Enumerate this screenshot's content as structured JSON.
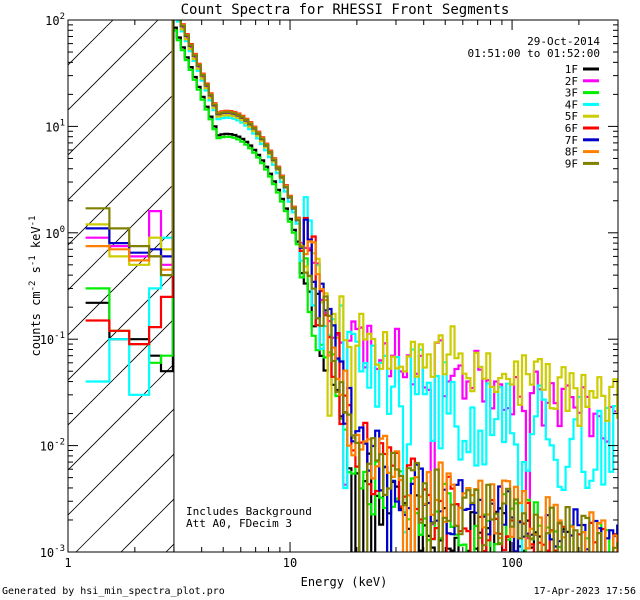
{
  "chart_data": {
    "type": "line",
    "title": "Count Spectra for RHESSI Front Segments",
    "xlabel": "Energy (keV)",
    "ylabel_parts": [
      "counts cm",
      "-2",
      " s",
      "-1",
      " keV",
      "-1"
    ],
    "xscale": "log",
    "yscale": "log",
    "xlim": [
      1,
      300
    ],
    "ylim": [
      0.001,
      100
    ],
    "x_ticks": [
      {
        "value": 1,
        "label": "1"
      },
      {
        "value": 10,
        "label": "10"
      },
      {
        "value": 100,
        "label": "100"
      }
    ],
    "y_ticks": [
      {
        "value": 100,
        "base": "10",
        "exp": "2"
      },
      {
        "value": 10,
        "base": "10",
        "exp": "1"
      },
      {
        "value": 1,
        "base": "10",
        "exp": "0"
      },
      {
        "value": 0.1,
        "base": "10",
        "exp": "-1"
      },
      {
        "value": 0.01,
        "base": "10",
        "exp": "-2"
      },
      {
        "value": 0.001,
        "base": "10",
        "exp": "-3"
      }
    ],
    "hatched_region_xmax": 3,
    "date": "29-Oct-2014",
    "time_range": "01:51:00 to 01:52:00",
    "annotations": [
      "Includes Background",
      "Att A0, FDecim 3"
    ],
    "footer_left": "Generated by hsi_min_spectra_plot.pro",
    "footer_right": "17-Apr-2023 17:56",
    "series": [
      {
        "name": "1F",
        "color": "#000000",
        "peak": 8.5,
        "low": [
          0.22,
          0.1,
          0.1,
          0.07,
          0.05
        ],
        "tail": 0.003,
        "noise": 0.8,
        "seed": 11
      },
      {
        "name": "2F",
        "color": "#ff00ff",
        "peak": 13,
        "low": [
          0.9,
          0.75,
          0.6,
          1.6,
          0.5
        ],
        "tail": 0.09,
        "noise": 0.6,
        "seed": 23
      },
      {
        "name": "3F",
        "color": "#00ee00",
        "peak": 8.0,
        "low": [
          0.3,
          0.12,
          0.09,
          0.06,
          0.07
        ],
        "tail": 0.004,
        "noise": 0.9,
        "seed": 37
      },
      {
        "name": "4F",
        "color": "#00ffff",
        "peak": 12,
        "low": [
          0.04,
          0.1,
          0.03,
          0.3,
          0.9
        ],
        "tail": 0.04,
        "noise": 1.1,
        "seed": 41
      },
      {
        "name": "5F",
        "color": "#cccc00",
        "peak": 12.5,
        "low": [
          1.2,
          0.6,
          0.5,
          0.9,
          0.7
        ],
        "tail": 0.12,
        "noise": 0.7,
        "seed": 53
      },
      {
        "name": "6F",
        "color": "#ff0000",
        "peak": 14,
        "low": [
          0.15,
          0.12,
          0.09,
          0.13,
          0.25
        ],
        "tail": 0.004,
        "noise": 0.9,
        "seed": 61
      },
      {
        "name": "7F",
        "color": "#0000cc",
        "peak": 13.5,
        "low": [
          1.1,
          0.8,
          0.65,
          0.7,
          0.6
        ],
        "tail": 0.005,
        "noise": 0.7,
        "seed": 73
      },
      {
        "name": "8F",
        "color": "#ff8000",
        "peak": 13.8,
        "low": [
          0.75,
          0.7,
          0.55,
          0.6,
          0.45
        ],
        "tail": 0.006,
        "noise": 0.7,
        "seed": 89
      },
      {
        "name": "9F",
        "color": "#808000",
        "peak": 13.6,
        "low": [
          1.7,
          1.1,
          0.75,
          0.6,
          0.4
        ],
        "tail": 0.005,
        "noise": 0.7,
        "seed": 97
      }
    ]
  }
}
